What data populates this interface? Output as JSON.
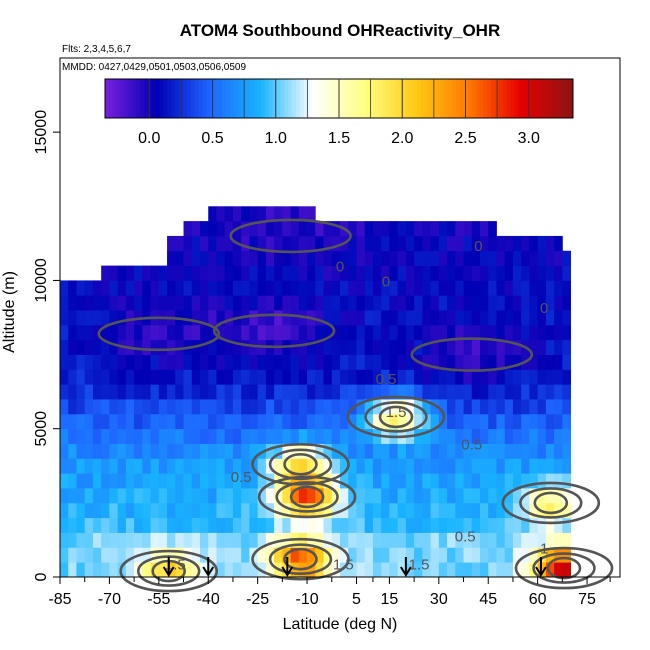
{
  "chart_data": {
    "type": "heatmap",
    "title": "ATOM4 Southbound OHReactivity_OHR",
    "flights_note": "Flts: 2,3,4,5,6,7",
    "dates_note": "MMDD: 0427,0429,0501,0503,0506,0509",
    "xlabel": "Latitude (deg N)",
    "ylabel": "Altitude (m)",
    "xlim": [
      -85,
      85
    ],
    "ylim": [
      0,
      17500
    ],
    "x_ticks": [
      -85,
      -70,
      -55,
      -40,
      -25,
      -10,
      5,
      15,
      30,
      45,
      60,
      75
    ],
    "y_ticks": [
      0,
      5000,
      10000,
      15000
    ],
    "colorbar": {
      "range": [
        -0.35,
        3.35
      ],
      "ticks": [
        0.0,
        0.5,
        1.0,
        1.5,
        2.0,
        2.5,
        3.0
      ],
      "tick_labels": [
        "0.0",
        "0.5",
        "1.0",
        "1.5",
        "2.0",
        "2.5",
        "3.0"
      ],
      "colors": [
        "#7a1fe0",
        "#0000b4",
        "#1e64ff",
        "#19b4ff",
        "#ffffff",
        "#ffff82",
        "#ffc814",
        "#ff7800",
        "#e60000",
        "#8c1414"
      ]
    },
    "data_extent": {
      "lat_min": -85,
      "lat_max": 70,
      "alt_top": [
        {
          "lat": -85,
          "alt": 10000
        },
        {
          "lat": -75,
          "alt": 10500
        },
        {
          "lat": -55,
          "alt": 11500
        },
        {
          "lat": -50,
          "alt": 12000
        },
        {
          "lat": -42,
          "alt": 12500
        },
        {
          "lat": -20,
          "alt": 12500
        },
        {
          "lat": -10,
          "alt": 12000
        },
        {
          "lat": 25,
          "alt": 12000
        },
        {
          "lat": 45,
          "alt": 11500
        },
        {
          "lat": 67,
          "alt": 11000
        }
      ]
    },
    "hotspots": [
      {
        "lat": -12,
        "alt": 600,
        "value": 2.7
      },
      {
        "lat": -10,
        "alt": 2700,
        "value": 2.6
      },
      {
        "lat": 17,
        "alt": 5400,
        "value": 1.8
      },
      {
        "lat": -12,
        "alt": 3800,
        "value": 1.9
      },
      {
        "lat": 68,
        "alt": 300,
        "value": 3.2
      },
      {
        "lat": -52,
        "alt": 200,
        "value": 2.0
      },
      {
        "lat": 64,
        "alt": 2500,
        "value": 1.8
      }
    ],
    "low_zones": [
      {
        "lat": -20,
        "alt": 8300,
        "value": -0.2
      },
      {
        "lat": -55,
        "alt": 8200,
        "value": -0.15
      },
      {
        "lat": 40,
        "alt": 7500,
        "value": -0.15
      },
      {
        "lat": -15,
        "alt": 11500,
        "value": -0.1
      }
    ],
    "contour_labels": [
      {
        "text": "0",
        "lat": 42,
        "alt": 11000
      },
      {
        "text": "0",
        "lat": 0,
        "alt": 10300
      },
      {
        "text": "0",
        "lat": 14,
        "alt": 9800
      },
      {
        "text": "0",
        "lat": 62,
        "alt": 8900
      },
      {
        "text": "0.5",
        "lat": 14,
        "alt": 6500
      },
      {
        "text": "1.5",
        "lat": 17,
        "alt": 5400
      },
      {
        "text": "0.5",
        "lat": 40,
        "alt": 4300
      },
      {
        "text": "0.5",
        "lat": -30,
        "alt": 3200
      },
      {
        "text": "0.5",
        "lat": 38,
        "alt": 1200
      },
      {
        "text": "1.5",
        "lat": 1,
        "alt": 250
      },
      {
        "text": "1.5",
        "lat": 24,
        "alt": 250
      },
      {
        "text": "1.5",
        "lat": -50,
        "alt": 250
      },
      {
        "text": "1",
        "lat": 62,
        "alt": 800
      }
    ],
    "flight_markers_lat": [
      -52,
      -40,
      -16,
      20,
      61
    ]
  }
}
